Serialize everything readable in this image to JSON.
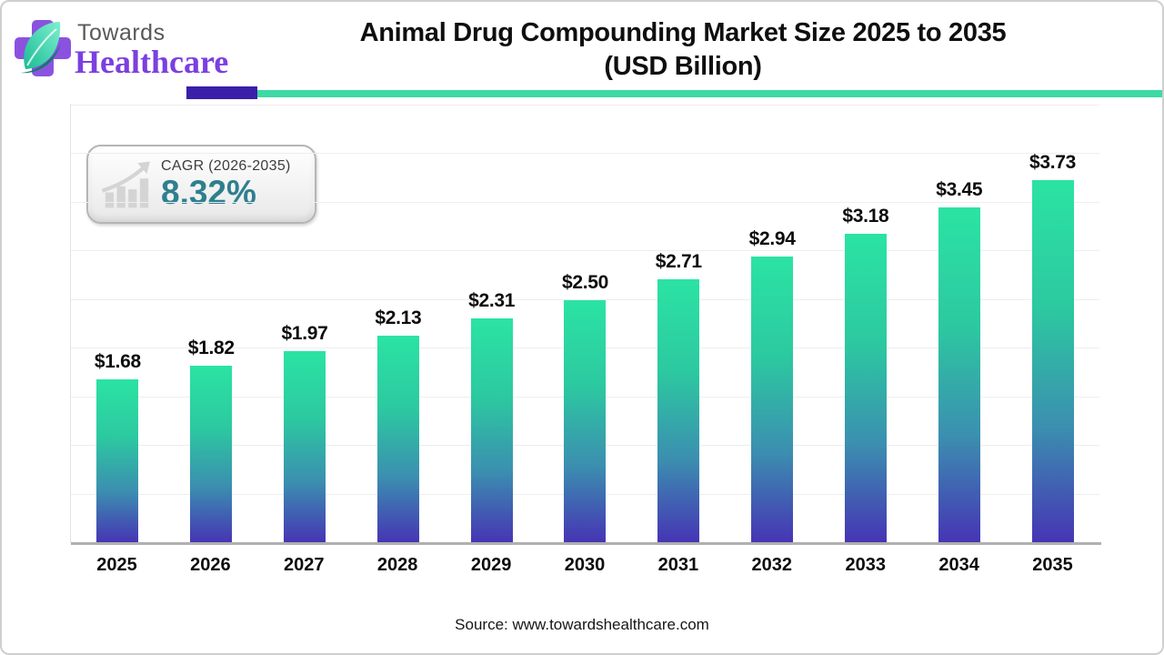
{
  "logo": {
    "towards": "Towards",
    "healthcare": "Healthcare"
  },
  "header": {
    "title_line1": "Animal Drug Compounding Market Size 2025 to 2035",
    "title_line2": "(USD Billion)"
  },
  "cagr_badge": {
    "label": "CAGR (2026-2035)",
    "value": "8.32%"
  },
  "footer": {
    "source": "Source: www.towardshealthcare.com"
  },
  "colors": {
    "divider_purple": "#3a1fa8",
    "divider_teal": "#3ed9a4",
    "cagr_value_teal": "#2e7f8e",
    "logo_purple": "#7b3fe0",
    "logo_leaf_teal": "#2bd3a4",
    "bar_gradient": [
      "#2be3a3",
      "#2cc9a0",
      "#3b8fb0",
      "#4634b4"
    ]
  },
  "chart_data": {
    "type": "bar",
    "title": "Animal Drug Compounding Market Size 2025 to 2035 (USD Billion)",
    "unit": "USD Billion",
    "categories": [
      "2025",
      "2026",
      "2027",
      "2028",
      "2029",
      "2030",
      "2031",
      "2032",
      "2033",
      "2034",
      "2035"
    ],
    "values": [
      1.68,
      1.82,
      1.97,
      2.13,
      2.31,
      2.5,
      2.71,
      2.94,
      3.18,
      3.45,
      3.73
    ],
    "labels": [
      "$1.68",
      "$1.82",
      "$1.97",
      "$2.13",
      "$2.31",
      "$2.50",
      "$2.71",
      "$2.94",
      "$3.18",
      "$3.45",
      "$3.73"
    ],
    "xlabel": "",
    "ylabel": "",
    "ylim": [
      0,
      4.5
    ],
    "gridlines_every": 0.5,
    "grid": "horizontal-faint",
    "legend": "none",
    "cagr": "8.32%",
    "cagr_period": "2026-2035"
  }
}
